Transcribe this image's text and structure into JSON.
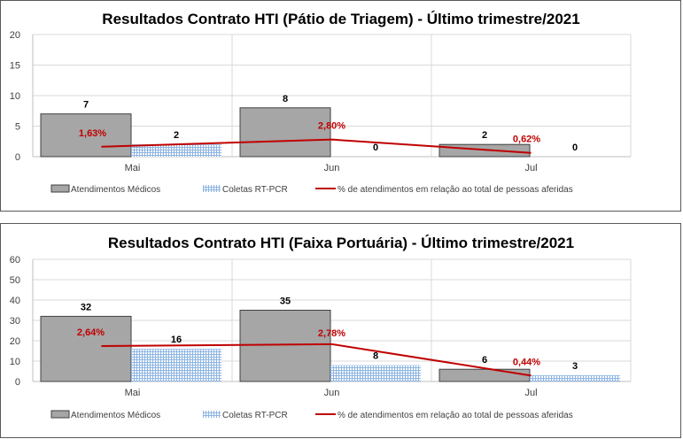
{
  "chart_data": [
    {
      "type": "bar",
      "title": "Resultados Contrato HTI (Pátio de Triagem) - Último trimestre/2021",
      "categories": [
        "Mai",
        "Jun",
        "Jul"
      ],
      "ylim": [
        0,
        20
      ],
      "yticks": [
        0,
        5,
        10,
        15,
        20
      ],
      "series": [
        {
          "name": "Atendimentos Médicos",
          "values": [
            7,
            8,
            2
          ],
          "labels": [
            "7",
            "8",
            "2"
          ],
          "color": "#a6a6a6"
        },
        {
          "name": "Coletas RT-PCR",
          "values": [
            2,
            0,
            0
          ],
          "labels": [
            "2",
            "0",
            "0"
          ],
          "color": "#8db4e2"
        }
      ],
      "line": {
        "name": "% de atendimentos em relação ao total de pessoas aferidas",
        "values": [
          1.63,
          2.8,
          0.62
        ],
        "labels": [
          "1,63%",
          "2,80%",
          "0,62%"
        ],
        "color": "#c00000"
      },
      "legend": "bottom",
      "grid": true
    },
    {
      "type": "bar",
      "title": "Resultados Contrato HTI (Faixa Portuária) - Último trimestre/2021",
      "categories": [
        "Mai",
        "Jun",
        "Jul"
      ],
      "ylim": [
        0,
        60
      ],
      "yticks": [
        0,
        10,
        20,
        30,
        40,
        50,
        60
      ],
      "series": [
        {
          "name": "Atendimentos Médicos",
          "values": [
            32,
            35,
            6
          ],
          "labels": [
            "32",
            "35",
            "6"
          ],
          "color": "#a6a6a6"
        },
        {
          "name": "Coletas RT-PCR",
          "values": [
            16,
            8,
            3
          ],
          "labels": [
            "16",
            "8",
            "3"
          ],
          "color": "#8db4e2"
        }
      ],
      "line": {
        "name": "% de atendimentos em relação ao total de pessoas aferidas",
        "values": [
          2.64,
          2.78,
          0.44
        ],
        "labels": [
          "2,64%",
          "2,78%",
          "0,44%"
        ],
        "color": "#c00000"
      },
      "legend": "bottom",
      "grid": true
    }
  ]
}
